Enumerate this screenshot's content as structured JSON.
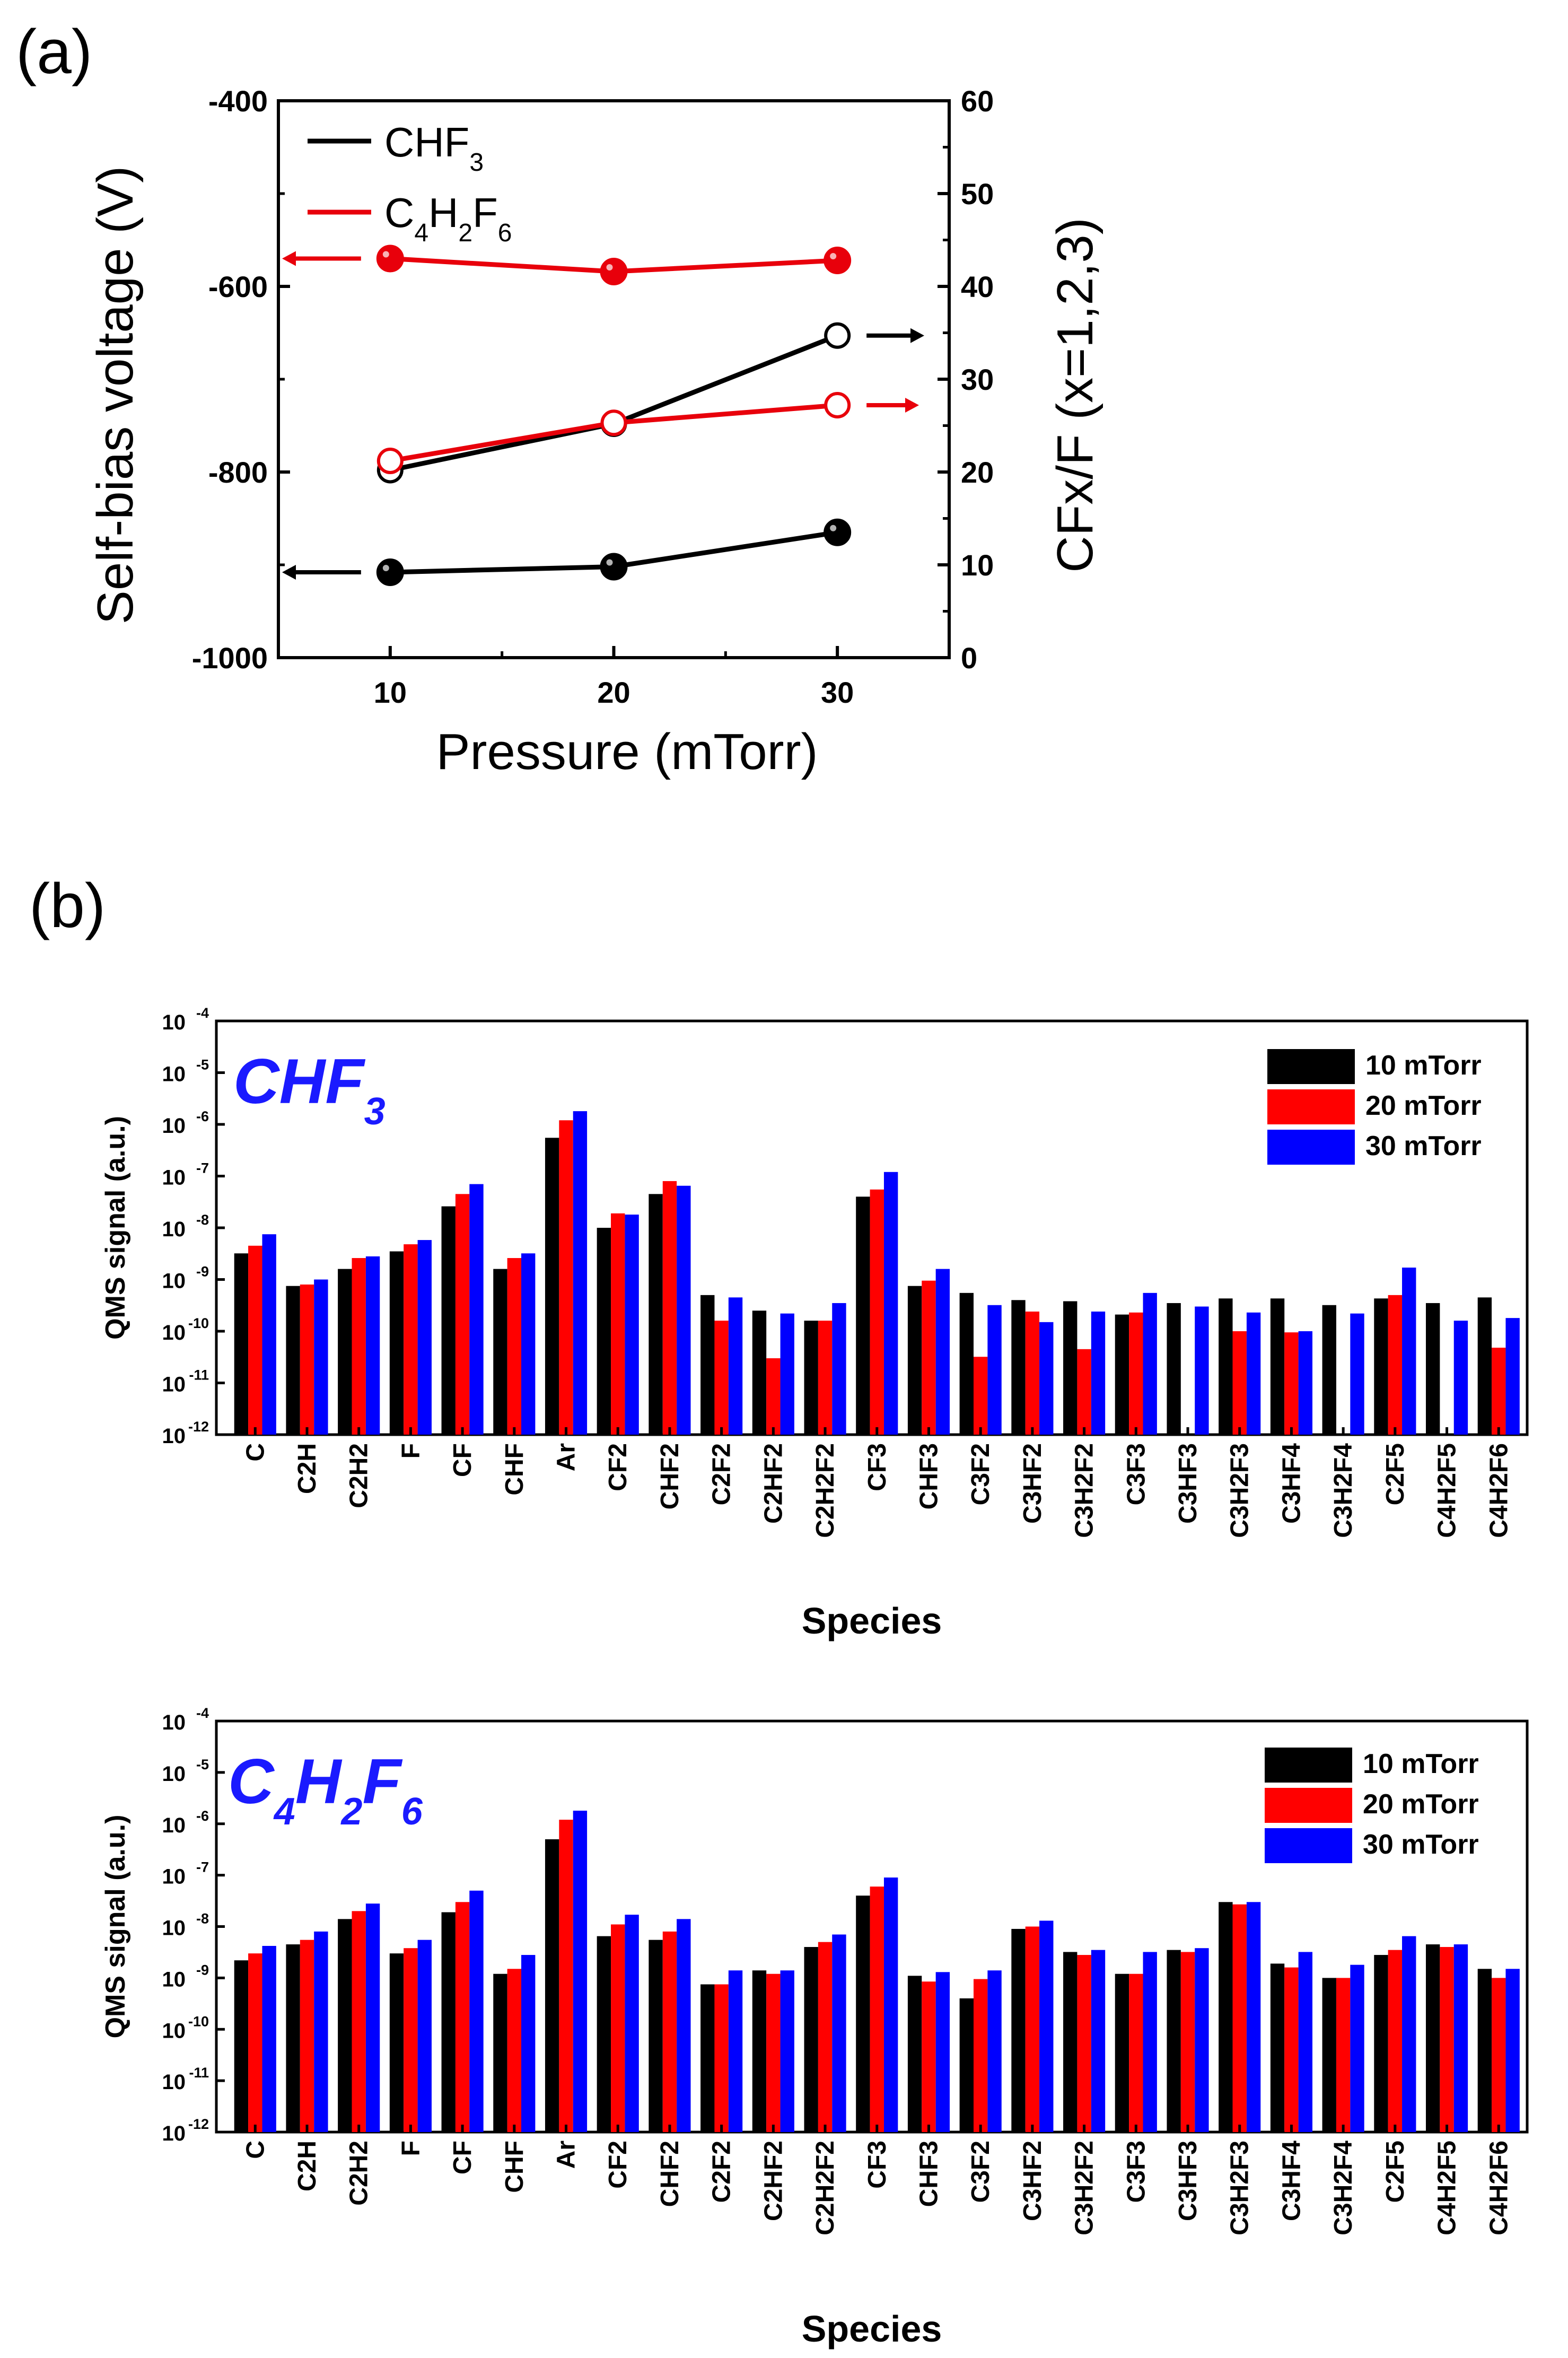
{
  "panel_labels": {
    "a": "(a)",
    "b": "(b)"
  },
  "chart_data": [
    {
      "id": "panel-a",
      "type": "line",
      "title": "",
      "xlabel": "Pressure (mTorr)",
      "ylabel_left": "Self-bias voltage (V)",
      "ylabel_right": "CFx/F (x=1,2,3)",
      "x": [
        10,
        20,
        30
      ],
      "xlim": [
        5,
        35
      ],
      "xticks": [
        "10",
        "20",
        "30"
      ],
      "ylim_left": [
        -1000,
        -400
      ],
      "yticks_left": [
        "-400",
        "-600",
        "-800",
        "-1000"
      ],
      "ylim_right": [
        0,
        60
      ],
      "yticks_right": [
        "0",
        "10",
        "20",
        "30",
        "40",
        "50",
        "60"
      ],
      "legend": [
        {
          "name": "CHF",
          "sub": "3",
          "color": "#000000"
        },
        {
          "name": "C4H2F6",
          "color": "#e8000b"
        }
      ],
      "series": [
        {
          "name": "CHF3 self-bias voltage",
          "axis": "left",
          "marker": "filled",
          "color": "#000000",
          "values": [
            -908,
            -902,
            -865
          ]
        },
        {
          "name": "C4H2F6 self-bias voltage",
          "axis": "left",
          "marker": "filled",
          "color": "#e8000b",
          "values": [
            -570,
            -584,
            -572
          ]
        },
        {
          "name": "CHF3 CFx/F",
          "axis": "right",
          "marker": "open",
          "color": "#000000",
          "values": [
            20.2,
            25.2,
            34.7
          ]
        },
        {
          "name": "C4H2F6 CFx/F",
          "axis": "right",
          "marker": "open",
          "color": "#e8000b",
          "values": [
            21.2,
            25.3,
            27.2
          ]
        }
      ]
    },
    {
      "id": "panel-b-chf3",
      "type": "bar",
      "title": "CHF3",
      "xlabel": "Species",
      "ylabel": "QMS signal (a.u.)",
      "yscale": "log",
      "ylim": [
        1e-12,
        0.0001
      ],
      "yticks": [
        "-12",
        "-11",
        "-10",
        "-9",
        "-8",
        "-7",
        "-6",
        "-5",
        "-4"
      ],
      "ytick_base": "10",
      "legend": [
        "10 mTorr",
        "20 mTorr",
        "30 mTorr"
      ],
      "colors": [
        "#000000",
        "#ff0000",
        "#0000ff"
      ],
      "categories": [
        "C",
        "C2H",
        "C2H2",
        "F",
        "CF",
        "CHF",
        "Ar",
        "CF2",
        "CHF2",
        "C2F2",
        "C2HF2",
        "C2H2F2",
        "CF3",
        "CHF3",
        "C3F2",
        "C3HF2",
        "C3H2F2",
        "C3F3",
        "C3HF3",
        "C3H2F3",
        "C3HF4",
        "C3H2F4",
        "C2F5",
        "C4H2F5",
        "C4H2F6"
      ],
      "series": [
        {
          "name": "10 mTorr",
          "values": [
            3.2e-09,
            7.5e-10,
            1.6e-09,
            3.5e-09,
            2.6e-08,
            1.6e-09,
            5.5e-07,
            1e-08,
            4.5e-08,
            5e-10,
            2.5e-10,
            1.6e-10,
            4e-08,
            7.5e-10,
            5.5e-10,
            4e-10,
            3.8e-10,
            2.1e-10,
            3.5e-10,
            4.3e-10,
            4.3e-10,
            3.2e-10,
            4.3e-10,
            3.5e-10,
            4.5e-10
          ]
        },
        {
          "name": "20 mTorr",
          "values": [
            4.5e-09,
            8e-10,
            2.6e-09,
            4.8e-09,
            4.5e-08,
            2.6e-09,
            1.2e-06,
            1.9e-08,
            8e-08,
            1.6e-10,
            3e-11,
            1.6e-10,
            5.5e-08,
            9.5e-10,
            3.2e-11,
            2.4e-10,
            4.5e-11,
            2.3e-10,
            null,
            1e-10,
            9.5e-11,
            null,
            5e-10,
            null,
            4.8e-11
          ]
        },
        {
          "name": "30 mTorr",
          "values": [
            7.5e-09,
            1e-09,
            2.8e-09,
            5.8e-09,
            7e-08,
            3.2e-09,
            1.8e-06,
            1.8e-08,
            6.5e-08,
            4.5e-10,
            2.2e-10,
            3.5e-10,
            1.2e-07,
            1.6e-09,
            3.2e-10,
            1.5e-10,
            2.4e-10,
            5.5e-10,
            3e-10,
            2.3e-10,
            1e-10,
            2.2e-10,
            1.7e-09,
            1.6e-10,
            1.8e-10
          ]
        }
      ]
    },
    {
      "id": "panel-b-c4h2f6",
      "type": "bar",
      "title": "C4H2F6",
      "xlabel": "Species",
      "ylabel": "QMS signal (a.u.)",
      "yscale": "log",
      "ylim": [
        1e-12,
        0.0001
      ],
      "yticks": [
        "-12",
        "-11",
        "-10",
        "-9",
        "-8",
        "-7",
        "-6",
        "-5",
        "-4"
      ],
      "ytick_base": "10",
      "legend": [
        "10 mTorr",
        "20 mTorr",
        "30 mTorr"
      ],
      "colors": [
        "#000000",
        "#ff0000",
        "#0000ff"
      ],
      "categories": [
        "C",
        "C2H",
        "C2H2",
        "F",
        "CF",
        "CHF",
        "Ar",
        "CF2",
        "CHF2",
        "C2F2",
        "C2HF2",
        "C2H2F2",
        "CF3",
        "CHF3",
        "C3F2",
        "C3HF2",
        "C3H2F2",
        "C3F3",
        "C3HF3",
        "C3H2F3",
        "C3HF4",
        "C3H2F4",
        "C2F5",
        "C4H2F5",
        "C4H2F6"
      ],
      "series": [
        {
          "name": "10 mTorr",
          "values": [
            2.2e-09,
            4.5e-09,
            1.4e-08,
            3e-09,
            1.9e-08,
            1.2e-09,
            5e-07,
            6.5e-09,
            5.5e-09,
            7.5e-10,
            1.4e-09,
            4e-09,
            4e-08,
            1.1e-09,
            4e-10,
            9e-09,
            3.2e-09,
            1.2e-09,
            3.5e-09,
            3e-08,
            1.9e-09,
            1e-09,
            2.8e-09,
            4.5e-09,
            1.5e-09
          ]
        },
        {
          "name": "20 mTorr",
          "values": [
            3e-09,
            5.5e-09,
            2e-08,
            3.8e-09,
            3e-08,
            1.5e-09,
            1.2e-06,
            1.1e-08,
            8e-09,
            7.5e-10,
            1.2e-09,
            5e-09,
            6e-08,
            8.5e-10,
            9.5e-10,
            1e-08,
            2.8e-09,
            1.2e-09,
            3.2e-09,
            2.7e-08,
            1.6e-09,
            1e-09,
            3.5e-09,
            4e-09,
            1e-09
          ]
        },
        {
          "name": "30 mTorr",
          "values": [
            4.2e-09,
            8e-09,
            2.8e-08,
            5.5e-09,
            5e-08,
            2.8e-09,
            1.8e-06,
            1.7e-08,
            1.4e-08,
            1.4e-09,
            1.4e-09,
            7e-09,
            9e-08,
            1.3e-09,
            1.4e-09,
            1.3e-08,
            3.5e-09,
            3.2e-09,
            3.8e-09,
            3e-08,
            3.2e-09,
            1.8e-09,
            6.5e-09,
            4.5e-09,
            1.5e-09
          ]
        }
      ]
    }
  ]
}
